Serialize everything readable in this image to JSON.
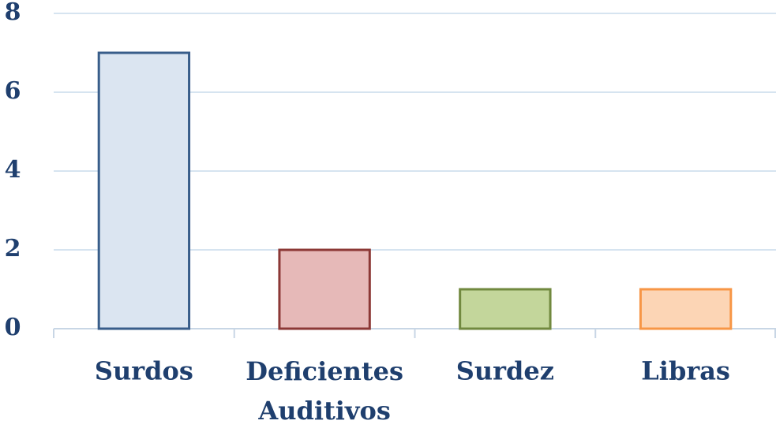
{
  "chart_data": {
    "type": "bar",
    "categories": [
      "Surdos",
      "Deficientes Auditivos",
      "Surdez",
      "Libras"
    ],
    "values": [
      7,
      2,
      1,
      1
    ],
    "colors": [
      "#dbe5f1",
      "#e6b9b8",
      "#c3d69b",
      "#fcd5b5"
    ],
    "edge_colors": [
      "#385d8a",
      "#8c3836",
      "#71893f",
      "#f79646"
    ],
    "ylim": [
      0,
      8
    ],
    "yticks": [
      0,
      2,
      4,
      6,
      8
    ],
    "grid": true
  }
}
